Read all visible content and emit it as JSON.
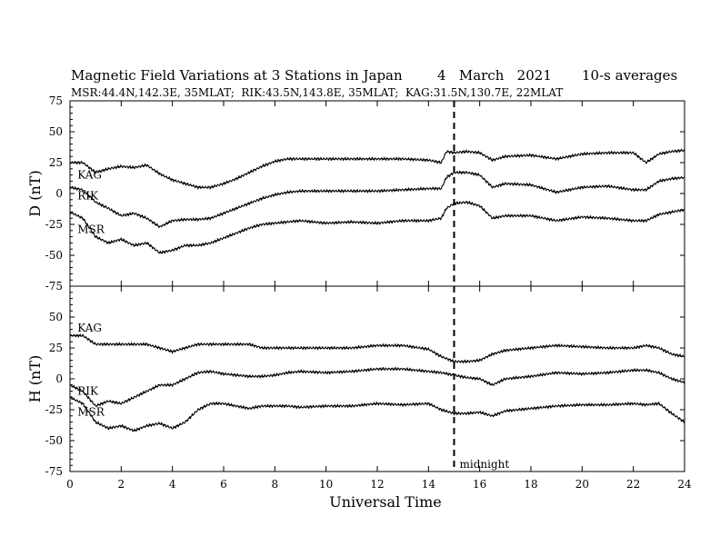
{
  "chart_data": {
    "type": "line",
    "title": "Magnetic Field Variations at 3 Stations in Japan",
    "date": "4   March   2021",
    "averaging": "10-s averages",
    "stations_line": "MSR:44.4N,142.3E, 35MLAT;  RIK:43.5N,143.8E, 35MLAT;  KAG:31.5N,130.7E, 22MLAT",
    "xlabel": "Universal Time",
    "xlim": [
      0,
      24
    ],
    "xticks": [
      0,
      2,
      4,
      6,
      8,
      10,
      12,
      14,
      16,
      18,
      20,
      22,
      24
    ],
    "marker": {
      "x": 15,
      "label": "midnight"
    },
    "panels": [
      {
        "id": "D",
        "ylabel": "D (nT)",
        "ylim": [
          -75,
          75
        ],
        "yticks": [
          75,
          50,
          25,
          0,
          -25,
          -50,
          -75
        ],
        "series": [
          {
            "name": "KAG",
            "label_at": [
              0.15,
              15
            ],
            "x": [
              0,
              0.5,
              1,
              1.5,
              2,
              2.5,
              3,
              3.5,
              4,
              4.5,
              5,
              5.5,
              6,
              6.5,
              7,
              7.5,
              8,
              8.5,
              9,
              10,
              11,
              12,
              13,
              14,
              14.5,
              14.7,
              15,
              15.5,
              16,
              16.5,
              17,
              18,
              19,
              20,
              21,
              22,
              22.5,
              23,
              23.5,
              24
            ],
            "y": [
              25,
              25,
              17,
              20,
              22,
              21,
              23,
              16,
              11,
              8,
              5,
              5,
              8,
              12,
              17,
              22,
              26,
              28,
              28,
              28,
              28,
              28,
              28,
              27,
              25,
              34,
              33,
              34,
              33,
              27,
              30,
              31,
              28,
              32,
              33,
              33,
              25,
              32,
              34,
              35
            ]
          },
          {
            "name": "RIK",
            "label_at": [
              0.15,
              -2
            ],
            "x": [
              0,
              0.5,
              1,
              1.5,
              2,
              2.5,
              3,
              3.5,
              4,
              4.5,
              5,
              5.5,
              6,
              6.5,
              7,
              7.5,
              8,
              8.5,
              9,
              10,
              11,
              12,
              13,
              14,
              14.5,
              14.7,
              15,
              15.5,
              16,
              16.5,
              17,
              18,
              19,
              20,
              21,
              22,
              22.5,
              23,
              23.5,
              24
            ],
            "y": [
              5,
              3,
              -7,
              -12,
              -18,
              -16,
              -20,
              -27,
              -22,
              -21,
              -21,
              -20,
              -16,
              -12,
              -8,
              -4,
              -1,
              1,
              2,
              2,
              2,
              2,
              3,
              4,
              4,
              13,
              17,
              17,
              15,
              5,
              8,
              7,
              1,
              5,
              6,
              3,
              3,
              10,
              12,
              13
            ]
          },
          {
            "name": "MSR",
            "label_at": [
              0.15,
              -29
            ],
            "x": [
              0,
              0.5,
              1,
              1.5,
              2,
              2.5,
              3,
              3.5,
              4,
              4.5,
              5,
              5.5,
              6,
              6.5,
              7,
              7.5,
              8,
              8.5,
              9,
              10,
              11,
              12,
              13,
              14,
              14.5,
              14.7,
              15,
              15.5,
              16,
              16.5,
              17,
              18,
              19,
              20,
              21,
              22,
              22.5,
              23,
              23.5,
              24
            ],
            "y": [
              -15,
              -20,
              -35,
              -40,
              -37,
              -42,
              -40,
              -48,
              -46,
              -42,
              -42,
              -40,
              -36,
              -32,
              -28,
              -25,
              -24,
              -23,
              -22,
              -24,
              -23,
              -24,
              -22,
              -22,
              -20,
              -12,
              -8,
              -7,
              -10,
              -20,
              -18,
              -18,
              -22,
              -19,
              -20,
              -22,
              -22,
              -17,
              -15,
              -13
            ]
          }
        ]
      },
      {
        "id": "H",
        "ylabel": "H (nT)",
        "ylim": [
          -75,
          75
        ],
        "yticks": [
          50,
          25,
          0,
          -25,
          -50,
          -75
        ],
        "series": [
          {
            "name": "KAG",
            "label_at": [
              0.15,
              41
            ],
            "x": [
              0,
              0.5,
              1,
              1.5,
              2,
              2.5,
              3,
              3.5,
              4,
              4.5,
              5,
              5.5,
              6,
              6.5,
              7,
              7.5,
              8,
              8.5,
              9,
              10,
              11,
              12,
              13,
              14,
              14.5,
              15,
              15.5,
              16,
              16.5,
              17,
              18,
              19,
              20,
              21,
              22,
              22.5,
              23,
              23.5,
              24
            ],
            "y": [
              35,
              35,
              28,
              28,
              28,
              28,
              28,
              25,
              22,
              25,
              28,
              28,
              28,
              28,
              28,
              25,
              25,
              25,
              25,
              25,
              25,
              27,
              27,
              24,
              18,
              14,
              14,
              15,
              20,
              23,
              25,
              27,
              26,
              25,
              25,
              27,
              25,
              20,
              18
            ]
          },
          {
            "name": "RIK",
            "label_at": [
              0.15,
              -10
            ],
            "x": [
              0,
              0.5,
              1,
              1.5,
              2,
              2.5,
              3,
              3.5,
              4,
              4.5,
              5,
              5.5,
              6,
              6.5,
              7,
              7.5,
              8,
              8.5,
              9,
              10,
              11,
              12,
              13,
              14,
              14.5,
              15,
              15.5,
              16,
              16.5,
              17,
              18,
              19,
              20,
              21,
              22,
              22.5,
              23,
              23.5,
              24
            ],
            "y": [
              -5,
              -10,
              -22,
              -18,
              -20,
              -15,
              -10,
              -5,
              -5,
              0,
              5,
              6,
              4,
              3,
              2,
              2,
              3,
              5,
              6,
              5,
              6,
              8,
              8,
              6,
              5,
              3,
              1,
              0,
              -5,
              0,
              2,
              5,
              4,
              5,
              7,
              7,
              5,
              0,
              -3
            ]
          },
          {
            "name": "MSR",
            "label_at": [
              0.15,
              -27
            ],
            "x": [
              0,
              0.5,
              1,
              1.5,
              2,
              2.5,
              3,
              3.5,
              4,
              4.5,
              5,
              5.5,
              6,
              6.5,
              7,
              7.5,
              8,
              8.5,
              9,
              10,
              11,
              12,
              13,
              14,
              14.5,
              15,
              15.5,
              16,
              16.5,
              17,
              18,
              19,
              20,
              21,
              22,
              22.5,
              23,
              23.5,
              24
            ],
            "y": [
              -15,
              -20,
              -35,
              -40,
              -38,
              -42,
              -38,
              -36,
              -40,
              -35,
              -25,
              -20,
              -20,
              -22,
              -24,
              -22,
              -22,
              -22,
              -23,
              -22,
              -22,
              -20,
              -21,
              -20,
              -25,
              -28,
              -28,
              -27,
              -30,
              -26,
              -24,
              -22,
              -21,
              -21,
              -20,
              -21,
              -20,
              -28,
              -35
            ]
          }
        ]
      }
    ]
  }
}
